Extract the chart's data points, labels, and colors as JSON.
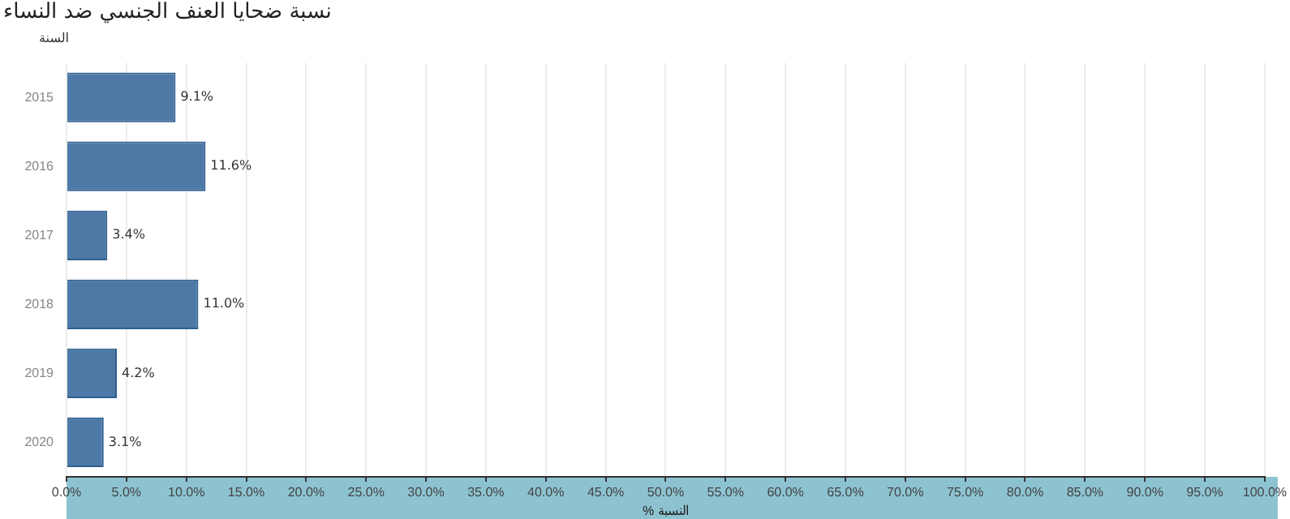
{
  "chart_data": {
    "type": "bar",
    "orientation": "horizontal",
    "title": "نسبة ضحايا العنف الجنسي ضد النساء",
    "ylabel": "السنة",
    "xlabel": "% النسبة",
    "categories": [
      "2015",
      "2016",
      "2017",
      "2018",
      "2019",
      "2020"
    ],
    "values": [
      9.1,
      11.6,
      3.4,
      11.0,
      4.2,
      3.1
    ],
    "value_labels": [
      "9.1%",
      "11.6%",
      "3.4%",
      "11.0%",
      "4.2%",
      "3.1%"
    ],
    "color": "#4e79a7",
    "xlim": [
      0,
      100
    ],
    "xticks": [
      {
        "value": 0,
        "label": "0.0%"
      },
      {
        "value": 5,
        "label": "5.0%"
      },
      {
        "value": 10,
        "label": "10.0%"
      },
      {
        "value": 15,
        "label": "15.0%"
      },
      {
        "value": 20,
        "label": "20.0%"
      },
      {
        "value": 25,
        "label": "25.0%"
      },
      {
        "value": 30,
        "label": "30.0%"
      },
      {
        "value": 35,
        "label": "35.0%"
      },
      {
        "value": 40,
        "label": "40.0%"
      },
      {
        "value": 45,
        "label": "45.0%"
      },
      {
        "value": 50,
        "label": "50.0%"
      },
      {
        "value": 55,
        "label": "55.0%"
      },
      {
        "value": 60,
        "label": "60.0%"
      },
      {
        "value": 65,
        "label": "65.0%"
      },
      {
        "value": 70,
        "label": "70.0%"
      },
      {
        "value": 75,
        "label": "75.0%"
      },
      {
        "value": 80,
        "label": "80.0%"
      },
      {
        "value": 85,
        "label": "85.0%"
      },
      {
        "value": 90,
        "label": "90.0%"
      },
      {
        "value": 95,
        "label": "95.0%"
      },
      {
        "value": 100,
        "label": "100.0%"
      }
    ],
    "grid": "x",
    "legend": false
  }
}
